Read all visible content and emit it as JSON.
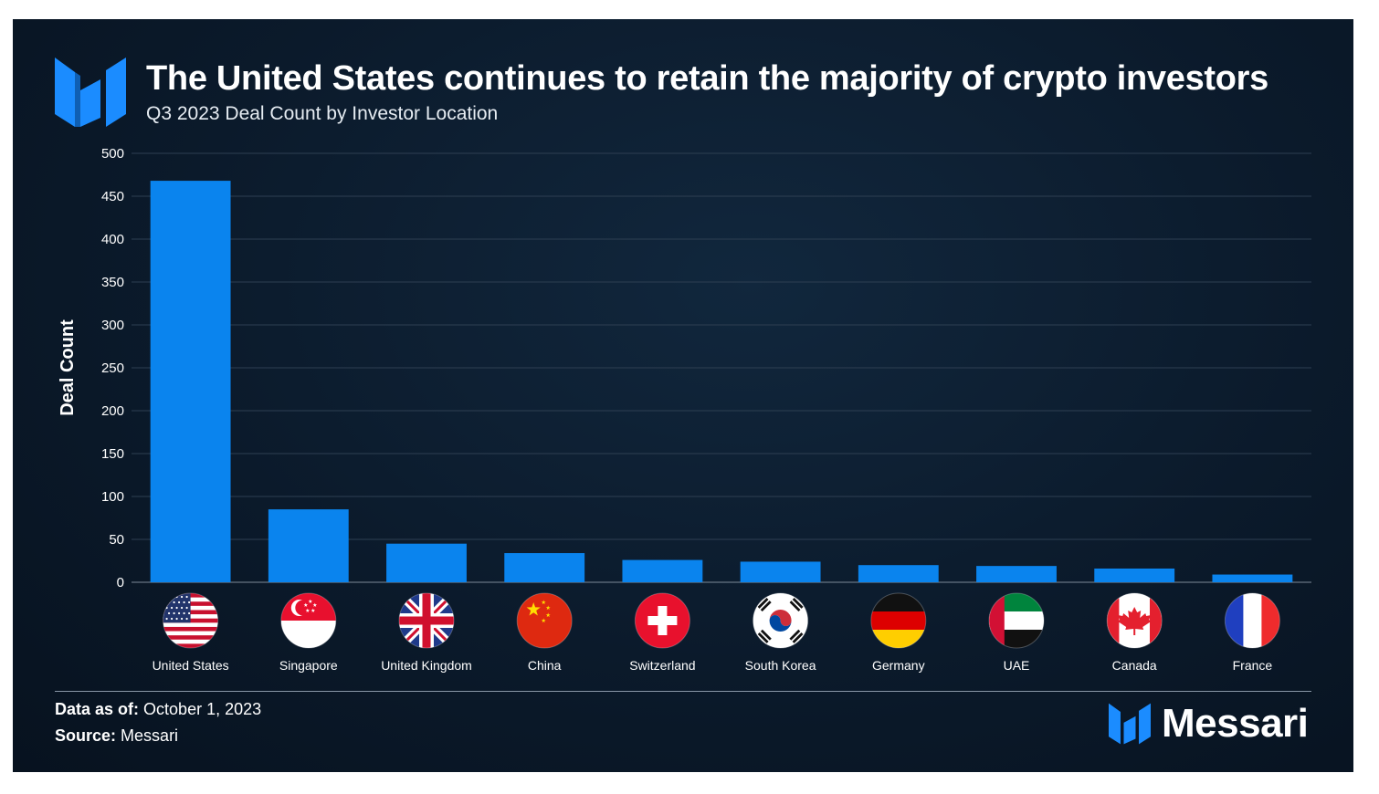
{
  "header": {
    "title": "The United States continues to retain the majority of crypto investors",
    "subtitle": "Q3 2023 Deal Count by Investor Location"
  },
  "footer": {
    "date_label": "Data as of:",
    "date_value": "October 1, 2023",
    "source_label": "Source:",
    "source_value": "Messari",
    "brand": "Messari"
  },
  "colors": {
    "bar": "#0a84ee",
    "grid": "#2e3f52",
    "text": "#ffffff"
  },
  "chart_data": {
    "type": "bar",
    "title": "Q3 2023 Deal Count by Investor Location",
    "xlabel": "",
    "ylabel": "Deal Count",
    "ylim": [
      0,
      500
    ],
    "yticks": [
      0,
      50,
      100,
      150,
      200,
      250,
      300,
      350,
      400,
      450,
      500
    ],
    "grid": true,
    "categories": [
      "United States",
      "Singapore",
      "United Kingdom",
      "China",
      "Switzerland",
      "South Korea",
      "Germany",
      "UAE",
      "Canada",
      "France"
    ],
    "values": [
      468,
      85,
      45,
      34,
      26,
      24,
      20,
      19,
      16,
      9
    ],
    "flags": [
      "us-flag-icon",
      "singapore-flag-icon",
      "uk-flag-icon",
      "china-flag-icon",
      "switzerland-flag-icon",
      "south-korea-flag-icon",
      "germany-flag-icon",
      "uae-flag-icon",
      "canada-flag-icon",
      "france-flag-icon"
    ]
  }
}
